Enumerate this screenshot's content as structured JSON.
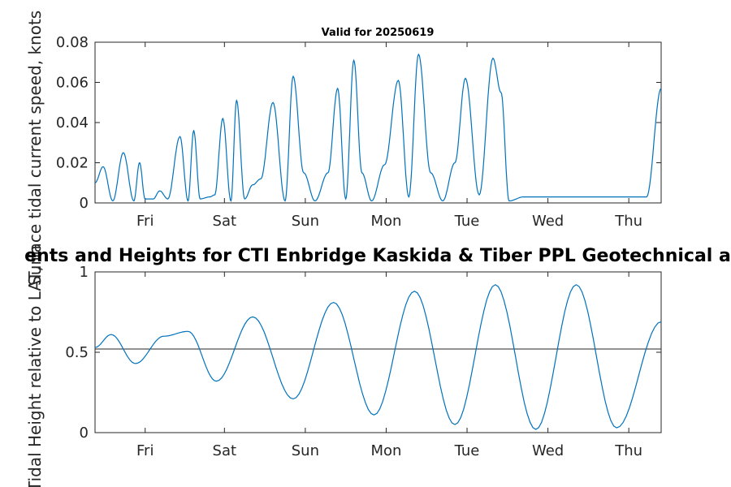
{
  "chart_data": [
    {
      "type": "line",
      "title": "Valid for 20250619",
      "ylabel": "Surface tidal current speed, knots",
      "xlabel": "",
      "ylim": [
        0,
        0.08
      ],
      "yticks": [
        "0",
        "0.02",
        "0.04",
        "0.06",
        "0.08"
      ],
      "xlim_days": [
        0,
        7
      ],
      "xticks": [
        "Fri",
        "Sat",
        "Sun",
        "Mon",
        "Tue",
        "Wed",
        "Thu"
      ],
      "grid": false,
      "series": [
        {
          "color": "#0072BD",
          "x": [
            0,
            0.1,
            0.22,
            0.35,
            0.48,
            0.55,
            0.62,
            0.72,
            0.8,
            0.9,
            1.05,
            1.15,
            1.22,
            1.3,
            1.42,
            1.48,
            1.58,
            1.68,
            1.75,
            1.85,
            1.95,
            2.05,
            2.2,
            2.35,
            2.45,
            2.58,
            2.72,
            2.88,
            3.0,
            3.1,
            3.2,
            3.3,
            3.42,
            3.58,
            3.75,
            3.88,
            4.0,
            4.15,
            4.3,
            4.45,
            4.58,
            4.75,
            4.92,
            5.02,
            5.12,
            5.3,
            5.48,
            5.62,
            5.72,
            5.85,
            5.98,
            6.08,
            6.2,
            6.35,
            6.52,
            6.65,
            6.82,
            7.0
          ],
          "y": [
            0.01,
            0.018,
            0.001,
            0.025,
            0.001,
            0.02,
            0.002,
            0.002,
            0.006,
            0.002,
            0.033,
            0.001,
            0.036,
            0.002,
            0.003,
            0.004,
            0.042,
            0.001,
            0.051,
            0.002,
            0.009,
            0.012,
            0.05,
            0.001,
            0.063,
            0.015,
            0.001,
            0.015,
            0.057,
            0.002,
            0.071,
            0.015,
            0.001,
            0.019,
            0.061,
            0.003,
            0.074,
            0.015,
            0.001,
            0.02,
            0.062,
            0.004,
            0.072,
            0.055,
            0.001,
            0.003,
            0.003,
            0.003,
            0.003,
            0.003,
            0.003,
            0.003,
            0.003,
            0.003,
            0.003,
            0.003,
            0.003,
            0.057
          ]
        }
      ]
    },
    {
      "type": "line",
      "title": "Currents and Heights for CTI Enbridge  Kaskida & Tiber PPL Geotechnical and Geophysical",
      "title_visible": "ents and Heights for CTI Enbridge  Kaskida & Tiber PPL Geotechnical a",
      "ylabel": "Tidal Height relative to LAT, m",
      "xlabel": "",
      "ylim": [
        0,
        1
      ],
      "yticks": [
        "0",
        "0.5",
        "1"
      ],
      "xlim_days": [
        0,
        7
      ],
      "xticks": [
        "Fri",
        "Sat",
        "Sun",
        "Mon",
        "Tue",
        "Wed",
        "Thu"
      ],
      "reference_line": 0.52,
      "series": [
        {
          "color": "#0072BD",
          "x": [
            0,
            0.2,
            0.5,
            0.85,
            1.15,
            1.5,
            1.95,
            2.45,
            2.95,
            3.45,
            3.95,
            4.45,
            4.95,
            5.45,
            5.95,
            6.45,
            7.0
          ],
          "y": [
            0.53,
            0.61,
            0.43,
            0.6,
            0.63,
            0.32,
            0.72,
            0.21,
            0.81,
            0.11,
            0.88,
            0.05,
            0.92,
            0.02,
            0.92,
            0.03,
            0.69
          ]
        }
      ]
    }
  ]
}
